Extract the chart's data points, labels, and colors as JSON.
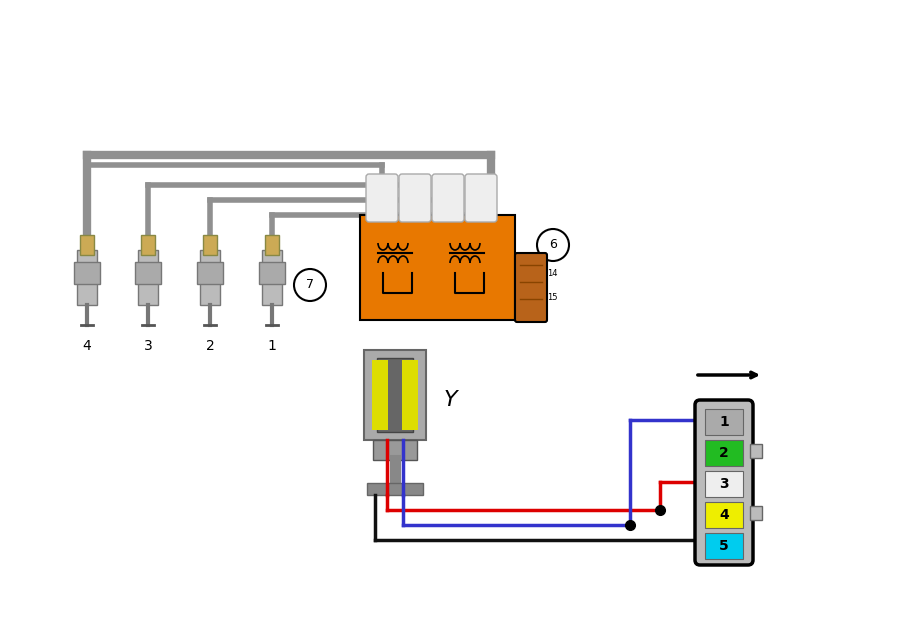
{
  "bg_color": "#ffffff",
  "wire_gray_color": "#909090",
  "wire_red_color": "#dd0000",
  "wire_blue_color": "#3333cc",
  "wire_black_color": "#111111",
  "coil_color": "#E87800",
  "coil_connector_color": "#B8631A",
  "plug_body_color": "#cccccc",
  "plug_tip_color": "#ccaa44",
  "sensor_gray": "#888888",
  "sensor_dark": "#555555",
  "sensor_yellow": "#dddd00",
  "conn5_bg": "#cccccc",
  "slot_colors": [
    "#aaaaaa",
    "#22bb22",
    "#eeeeee",
    "#eeee00",
    "#00ccee"
  ],
  "slot_labels": [
    "1",
    "2",
    "3",
    "4",
    "5"
  ]
}
